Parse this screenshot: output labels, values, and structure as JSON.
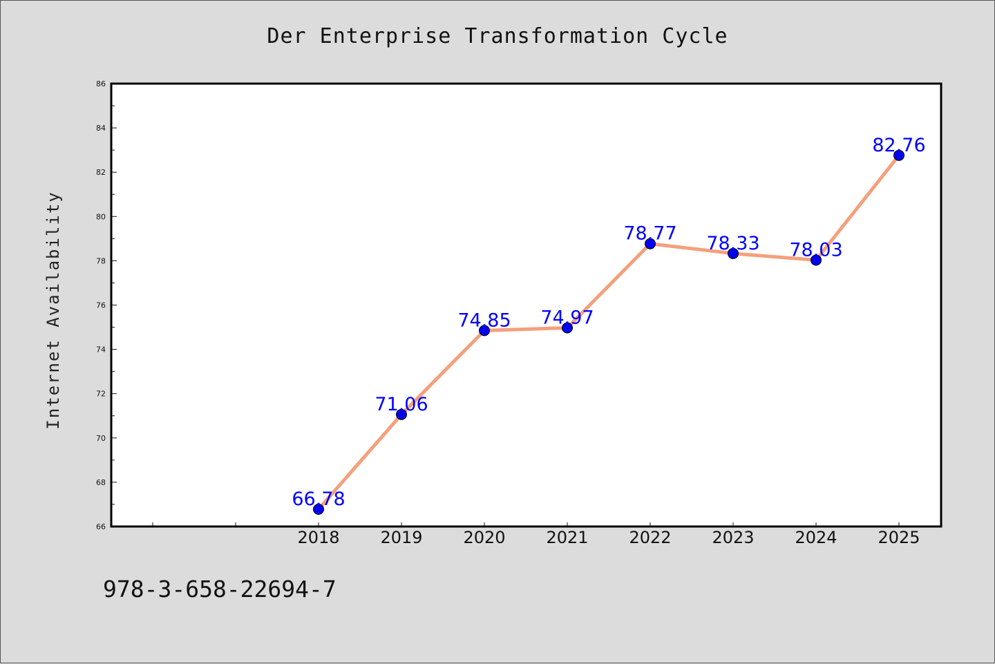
{
  "chart_data": {
    "type": "line",
    "title": "Der Enterprise Transformation Cycle",
    "xlabel": "",
    "ylabel": "Internet Availability",
    "categories": [
      "2018",
      "2019",
      "2020",
      "2021",
      "2022",
      "2023",
      "2024",
      "2025"
    ],
    "values": [
      66.78,
      71.06,
      74.85,
      74.97,
      78.77,
      78.33,
      78.03,
      82.76
    ],
    "value_labels": [
      "66.78",
      "71.06",
      "74.85",
      "74.97",
      "78.77",
      "78.33",
      "78.03",
      "82.76"
    ],
    "ylim": [
      66,
      86
    ],
    "yticks": [
      "66",
      "68",
      "70",
      "72",
      "74",
      "76",
      "78",
      "80",
      "82",
      "84",
      "86"
    ],
    "grid": false,
    "line_color": "#f4a07c",
    "marker_color": "#0000ee",
    "label_color": "#0000ff"
  },
  "footnote": "978-3-658-22694-7"
}
